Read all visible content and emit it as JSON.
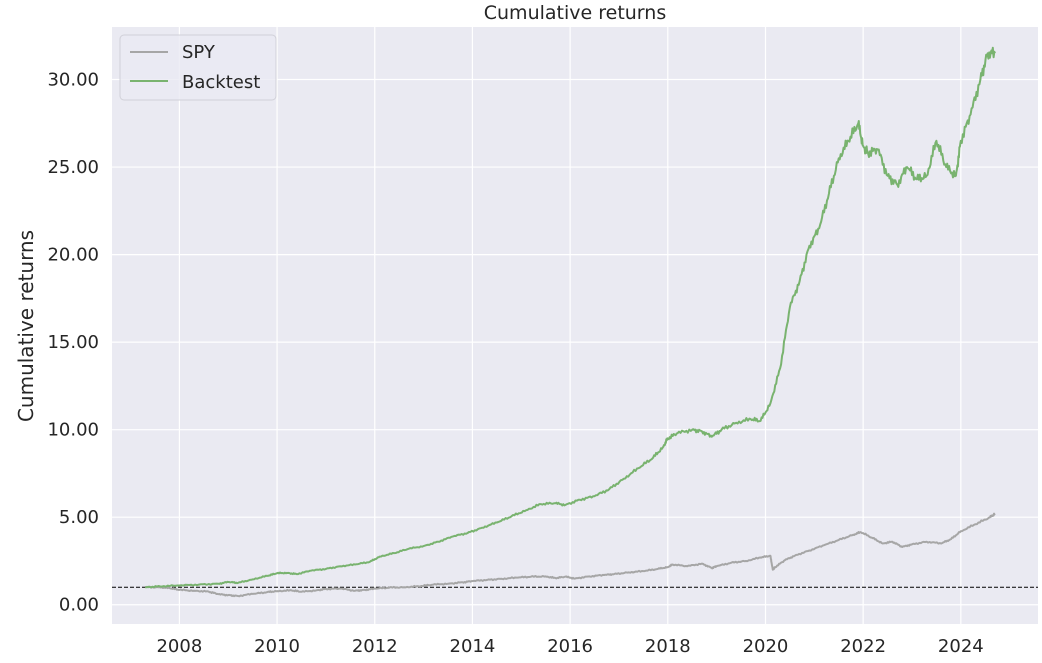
{
  "chart_data": {
    "type": "line",
    "title": "Cumulative returns",
    "xlabel": "",
    "ylabel": "Cumulative returns",
    "xlim": [
      2006.62,
      2025.58
    ],
    "ylim": [
      -1.1,
      33.0
    ],
    "x_ticks": [
      2008,
      2010,
      2012,
      2014,
      2016,
      2018,
      2020,
      2022,
      2024
    ],
    "x_tick_labels": [
      "2008",
      "2010",
      "2012",
      "2014",
      "2016",
      "2018",
      "2020",
      "2022",
      "2024"
    ],
    "y_ticks": [
      0,
      5,
      10,
      15,
      20,
      25,
      30
    ],
    "y_tick_labels": [
      "0.00",
      "5.00",
      "10.00",
      "15.00",
      "20.00",
      "25.00",
      "30.00"
    ],
    "grid": true,
    "legend_position": "top-left",
    "reference_line": {
      "y": 1.0,
      "style": "dashed",
      "color": "#000000"
    },
    "series": [
      {
        "name": "SPY",
        "color": "#a6a6a6",
        "x": [
          2007.3,
          2007.6,
          2007.8,
          2008.0,
          2008.3,
          2008.6,
          2008.8,
          2009.0,
          2009.2,
          2009.5,
          2009.8,
          2010.0,
          2010.3,
          2010.5,
          2010.8,
          2011.0,
          2011.3,
          2011.6,
          2011.8,
          2012.0,
          2012.3,
          2012.6,
          2012.9,
          2013.2,
          2013.5,
          2013.8,
          2014.0,
          2014.3,
          2014.6,
          2014.9,
          2015.2,
          2015.5,
          2015.7,
          2015.9,
          2016.1,
          2016.4,
          2016.7,
          2016.9,
          2017.2,
          2017.5,
          2017.8,
          2018.0,
          2018.1,
          2018.4,
          2018.7,
          2018.9,
          2019.0,
          2019.3,
          2019.6,
          2019.9,
          2020.1,
          2020.15,
          2020.2,
          2020.4,
          2020.6,
          2020.9,
          2021.2,
          2021.5,
          2021.8,
          2021.95,
          2022.2,
          2022.4,
          2022.6,
          2022.8,
          2023.0,
          2023.3,
          2023.6,
          2023.8,
          2024.0,
          2024.3,
          2024.6,
          2024.7
        ],
        "values": [
          1.0,
          1.0,
          0.95,
          0.85,
          0.8,
          0.75,
          0.6,
          0.55,
          0.5,
          0.62,
          0.72,
          0.78,
          0.82,
          0.74,
          0.82,
          0.9,
          0.92,
          0.8,
          0.85,
          0.92,
          0.98,
          1.0,
          1.05,
          1.15,
          1.2,
          1.28,
          1.35,
          1.42,
          1.48,
          1.55,
          1.6,
          1.62,
          1.52,
          1.6,
          1.5,
          1.62,
          1.7,
          1.75,
          1.85,
          1.92,
          2.05,
          2.15,
          2.3,
          2.2,
          2.35,
          2.1,
          2.2,
          2.4,
          2.5,
          2.7,
          2.8,
          2.0,
          2.15,
          2.55,
          2.8,
          3.1,
          3.4,
          3.7,
          4.0,
          4.15,
          3.8,
          3.5,
          3.6,
          3.3,
          3.45,
          3.6,
          3.5,
          3.75,
          4.2,
          4.6,
          5.0,
          5.2
        ]
      },
      {
        "name": "Backtest",
        "color": "#79b36f",
        "x": [
          2007.3,
          2007.6,
          2008.0,
          2008.4,
          2008.8,
          2009.0,
          2009.2,
          2009.5,
          2009.8,
          2010.0,
          2010.2,
          2010.4,
          2010.7,
          2011.0,
          2011.3,
          2011.6,
          2011.9,
          2012.1,
          2012.4,
          2012.7,
          2013.0,
          2013.3,
          2013.6,
          2013.9,
          2014.2,
          2014.5,
          2014.8,
          2015.1,
          2015.4,
          2015.7,
          2015.9,
          2016.2,
          2016.5,
          2016.8,
          2017.1,
          2017.4,
          2017.7,
          2017.9,
          2018.0,
          2018.2,
          2018.5,
          2018.7,
          2018.9,
          2019.1,
          2019.4,
          2019.7,
          2019.9,
          2020.1,
          2020.3,
          2020.5,
          2020.7,
          2020.9,
          2021.1,
          2021.3,
          2021.5,
          2021.7,
          2021.9,
          2022.0,
          2022.1,
          2022.3,
          2022.5,
          2022.7,
          2022.9,
          2023.1,
          2023.3,
          2023.5,
          2023.7,
          2023.9,
          2024.0,
          2024.2,
          2024.4,
          2024.55,
          2024.7
        ],
        "values": [
          1.0,
          1.05,
          1.1,
          1.15,
          1.2,
          1.3,
          1.25,
          1.45,
          1.65,
          1.8,
          1.82,
          1.75,
          1.95,
          2.05,
          2.2,
          2.3,
          2.45,
          2.75,
          2.95,
          3.2,
          3.35,
          3.6,
          3.9,
          4.1,
          4.4,
          4.7,
          5.05,
          5.4,
          5.75,
          5.8,
          5.7,
          6.0,
          6.2,
          6.6,
          7.2,
          7.8,
          8.4,
          9.0,
          9.5,
          9.8,
          10.0,
          9.9,
          9.6,
          10.0,
          10.4,
          10.6,
          10.5,
          11.5,
          13.5,
          17.0,
          18.5,
          20.5,
          21.5,
          23.5,
          25.5,
          26.5,
          27.5,
          26.2,
          25.8,
          26.0,
          24.5,
          24.0,
          25.0,
          24.3,
          24.5,
          26.5,
          25.0,
          24.5,
          26.5,
          28.0,
          30.0,
          31.5,
          31.5
        ]
      }
    ]
  }
}
